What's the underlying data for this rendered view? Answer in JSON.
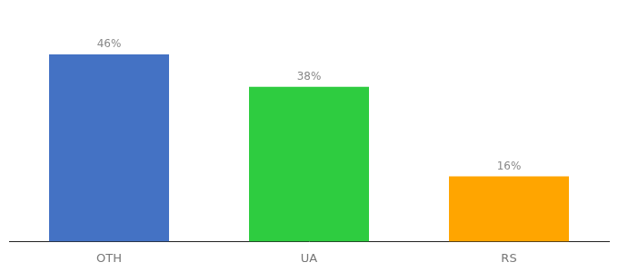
{
  "chart_data": {
    "type": "bar",
    "categories": [
      "OTH",
      "UA",
      "RS"
    ],
    "values": [
      46,
      38,
      16
    ],
    "value_labels": [
      "46%",
      "38%",
      "16%"
    ],
    "colors": [
      "#4472C4",
      "#2ECC40",
      "#FFA500"
    ],
    "ylim": [
      0,
      54
    ],
    "grid": false,
    "tick_labels": "x"
  }
}
